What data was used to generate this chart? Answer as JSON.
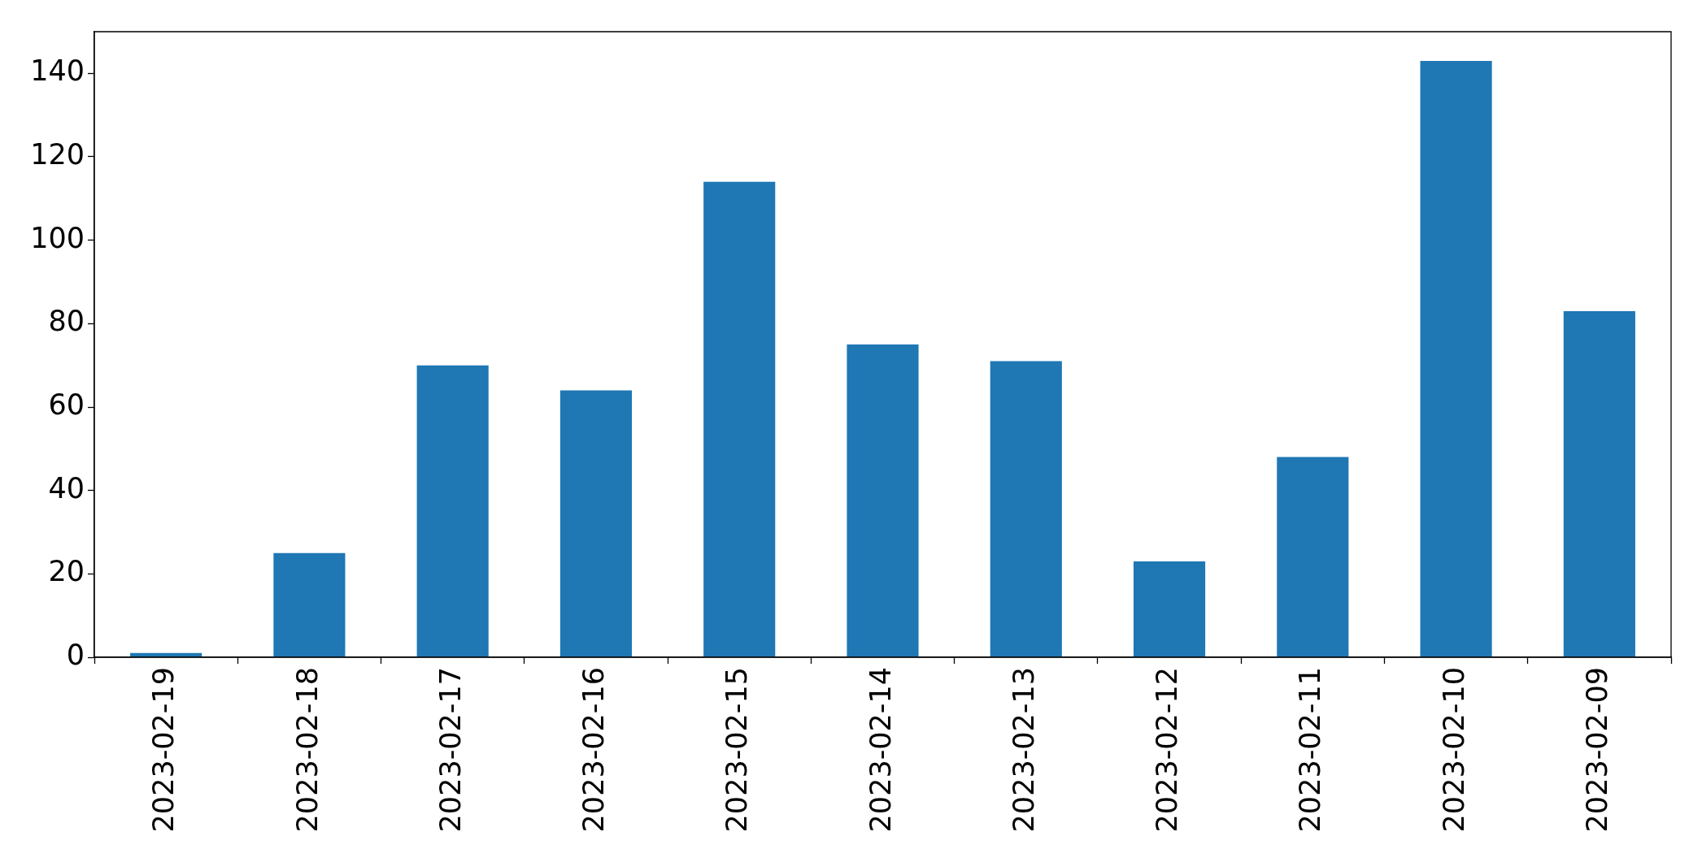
{
  "chart_data": {
    "type": "bar",
    "categories": [
      "2023-02-19",
      "2023-02-18",
      "2023-02-17",
      "2023-02-16",
      "2023-02-15",
      "2023-02-14",
      "2023-02-13",
      "2023-02-12",
      "2023-02-11",
      "2023-02-10",
      "2023-02-09"
    ],
    "values": [
      1,
      25,
      70,
      64,
      114,
      75,
      71,
      23,
      48,
      143,
      83
    ],
    "color": "#1f77b4",
    "ylim": [
      0,
      150
    ],
    "yticks": [
      0,
      20,
      40,
      60,
      80,
      100,
      120,
      140
    ],
    "grid": false,
    "legend": false
  }
}
